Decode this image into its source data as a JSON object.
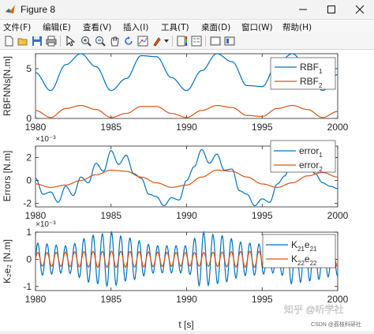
{
  "window": {
    "title": "Figure 8",
    "min_icon": "minimize-icon",
    "max_icon": "maximize-icon",
    "close_icon": "close-icon"
  },
  "menu": [
    "文件(F)",
    "编辑(E)",
    "查看(V)",
    "插入(I)",
    "工具(T)",
    "桌面(D)",
    "窗口(W)",
    "帮助(H)"
  ],
  "toolbar_icons": [
    "new-figure-icon",
    "open-icon",
    "save-icon",
    "print-icon",
    "pointer-icon",
    "zoom-in-icon",
    "zoom-out-icon",
    "pan-icon",
    "rotate-icon",
    "data-cursor-icon",
    "brush-icon",
    "colorbar-icon",
    "legend-icon",
    "hide-plot-tools-icon",
    "show-plot-tools-icon"
  ],
  "colors": {
    "series1": "#0072BD",
    "series2": "#D95319"
  },
  "watermark": {
    "line1": "知乎 @听学社",
    "line2": "CSDN @荔枝科研社"
  },
  "chart_data": [
    {
      "type": "line",
      "ylabel": "RBFNNs[N.m]",
      "xlim": [
        1980,
        2000
      ],
      "ylim": [
        0,
        6.5
      ],
      "yticks": [
        0,
        5
      ],
      "xticks": [
        "1980",
        "1985",
        "1990",
        "1995",
        "2000"
      ],
      "exponent": "",
      "legend_placement": "top-right",
      "legend": [
        {
          "main": "RBF",
          "sub": "1"
        },
        {
          "main": "RBF",
          "sub": "2"
        }
      ],
      "series": [
        {
          "name": "RBF_1",
          "period": 3.14,
          "points": [
            [
              1980,
              4.6
            ],
            [
              1981,
              2.8
            ],
            [
              1982,
              5.4
            ],
            [
              1983,
              6.5
            ],
            [
              1984,
              5.2
            ],
            [
              1985,
              2.8
            ],
            [
              1986,
              4.0
            ],
            [
              1987,
              6.3
            ],
            [
              1988,
              6.2
            ],
            [
              1989,
              4.1
            ],
            [
              1990,
              2.8
            ],
            [
              1991,
              4.8
            ],
            [
              1992,
              6.5
            ],
            [
              1993,
              5.7
            ],
            [
              1994,
              3.3
            ],
            [
              1995,
              3.2
            ],
            [
              1996,
              5.5
            ],
            [
              1997,
              6.5
            ],
            [
              1998,
              5.0
            ],
            [
              1999,
              2.8
            ],
            [
              2000,
              4.4
            ]
          ]
        },
        {
          "name": "RBF_2",
          "period": 3.14,
          "points": [
            [
              1980,
              0.8
            ],
            [
              1981,
              0.1
            ],
            [
              1982,
              1.0
            ],
            [
              1983,
              1.3
            ],
            [
              1984,
              0.9
            ],
            [
              1985,
              0.1
            ],
            [
              1986,
              0.5
            ],
            [
              1987,
              1.2
            ],
            [
              1988,
              1.2
            ],
            [
              1989,
              0.5
            ],
            [
              1990,
              0.1
            ],
            [
              1991,
              0.8
            ],
            [
              1992,
              1.3
            ],
            [
              1993,
              1.1
            ],
            [
              1994,
              0.3
            ],
            [
              1995,
              0.2
            ],
            [
              1996,
              1.0
            ],
            [
              1997,
              1.3
            ],
            [
              1998,
              0.9
            ],
            [
              1999,
              0.1
            ],
            [
              2000,
              0.7
            ]
          ]
        }
      ]
    },
    {
      "type": "line",
      "ylabel": "Errors [N.m]",
      "xlim": [
        1980,
        2000
      ],
      "ylim": [
        -2.3,
        3.0
      ],
      "yticks": [
        -2,
        0,
        2
      ],
      "xticks": [
        "1980",
        "1985",
        "1990",
        "1995",
        "2000"
      ],
      "exponent": "×10⁻³",
      "legend_placement": "top-right",
      "legend": [
        {
          "main": "error",
          "sub": "1"
        },
        {
          "main": "error",
          "sub": "2"
        }
      ],
      "series": [
        {
          "name": "error_1",
          "points": [
            [
              1980,
              0.2
            ],
            [
              1980.5,
              -1.2
            ],
            [
              1981,
              -1.0
            ],
            [
              1981.5,
              -1.9
            ],
            [
              1982,
              -0.5
            ],
            [
              1982.5,
              -1.3
            ],
            [
              1983,
              0.3
            ],
            [
              1983.5,
              -0.2
            ],
            [
              1984,
              1.5
            ],
            [
              1984.5,
              0.8
            ],
            [
              1985,
              2.6
            ],
            [
              1985.5,
              1.4
            ],
            [
              1986,
              2.2
            ],
            [
              1986.5,
              0.6
            ],
            [
              1987,
              0.2
            ],
            [
              1987.5,
              -1.2
            ],
            [
              1988,
              -1.4
            ],
            [
              1988.5,
              -2.2
            ],
            [
              1989,
              -1.5
            ],
            [
              1989.5,
              -1.7
            ],
            [
              1990,
              0.0
            ],
            [
              1990.5,
              1.2
            ],
            [
              1991,
              2.7
            ],
            [
              1991.5,
              1.5
            ],
            [
              1992,
              2.3
            ],
            [
              1992.5,
              0.9
            ],
            [
              1993,
              1.0
            ],
            [
              1993.5,
              -0.9
            ],
            [
              1994,
              -1.2
            ],
            [
              1994.5,
              -2.2
            ],
            [
              1995,
              -1.6
            ],
            [
              1995.5,
              -1.9
            ],
            [
              1996,
              -0.3
            ],
            [
              1996.5,
              0.4
            ],
            [
              1997,
              2.3
            ],
            [
              1997.5,
              1.3
            ],
            [
              1998,
              1.8
            ],
            [
              1998.5,
              0.6
            ],
            [
              1999,
              -0.2
            ],
            [
              1999.5,
              -0.5
            ],
            [
              2000,
              -0.7
            ]
          ]
        },
        {
          "name": "error_2",
          "points": [
            [
              1980,
              -0.3
            ],
            [
              1981,
              -0.6
            ],
            [
              1982,
              -0.4
            ],
            [
              1983,
              0.0
            ],
            [
              1984,
              0.5
            ],
            [
              1985,
              0.9
            ],
            [
              1986,
              0.8
            ],
            [
              1987,
              0.3
            ],
            [
              1988,
              -0.2
            ],
            [
              1989,
              -0.6
            ],
            [
              1990,
              -0.4
            ],
            [
              1991,
              0.3
            ],
            [
              1992,
              0.9
            ],
            [
              1993,
              0.8
            ],
            [
              1994,
              0.3
            ],
            [
              1995,
              -0.3
            ],
            [
              1996,
              -0.6
            ],
            [
              1997,
              -0.2
            ],
            [
              1998,
              0.4
            ],
            [
              1999,
              0.7
            ],
            [
              2000,
              0.3
            ]
          ]
        }
      ]
    },
    {
      "type": "line",
      "ylabel": "K₂e₂ [N.m]",
      "xlim": [
        1980,
        2000
      ],
      "ylim": [
        -1.15,
        1.0
      ],
      "yticks": [
        -1,
        0,
        1
      ],
      "xticks": [
        "1980",
        "1985",
        "1990",
        "1995",
        "2000"
      ],
      "xlabel": "t [s]",
      "exponent": "×10⁻³",
      "legend_placement": "top-right",
      "legend": [
        {
          "main": "K",
          "sub": "21",
          "main2": "e",
          "sub2": "21"
        },
        {
          "main": "K",
          "sub": "22",
          "main2": "e",
          "sub2": "22"
        }
      ],
      "series": [
        {
          "name": "K21e21",
          "period": 0.61,
          "amplitude_envelope": [
            [
              1980,
              0.6
            ],
            [
              1982,
              0.5
            ],
            [
              1984,
              0.9
            ],
            [
              1985,
              1.0
            ],
            [
              1986,
              0.8
            ],
            [
              1988,
              0.5
            ],
            [
              1990,
              0.5
            ],
            [
              1991,
              1.0
            ],
            [
              1992,
              0.9
            ],
            [
              1994,
              0.6
            ],
            [
              1996,
              0.5
            ],
            [
              1997,
              0.9
            ],
            [
              1998,
              0.8
            ],
            [
              2000,
              0.6
            ]
          ]
        },
        {
          "name": "K22e22",
          "period": 0.61,
          "amplitude_envelope": [
            [
              1980,
              0.25
            ],
            [
              1985,
              0.3
            ],
            [
              1990,
              0.25
            ],
            [
              1995,
              0.3
            ],
            [
              2000,
              0.25
            ]
          ]
        }
      ]
    }
  ]
}
